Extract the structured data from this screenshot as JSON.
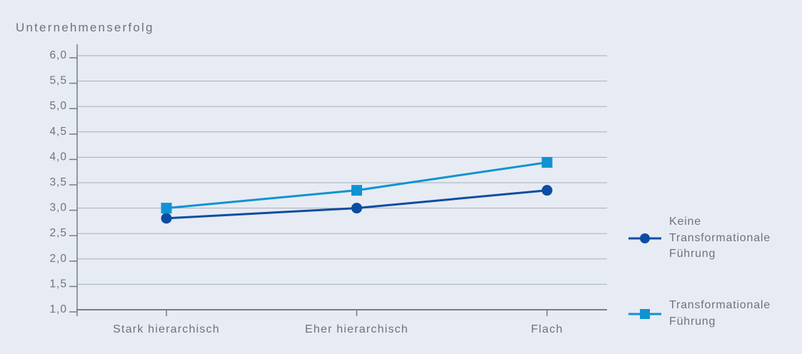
{
  "chart_data": {
    "type": "line",
    "title": "Unternehmenserfolg",
    "categories": [
      "Stark hierarchisch",
      "Eher hierarchisch",
      "Flach"
    ],
    "series": [
      {
        "name": "Keine Transformationale Führung",
        "marker": "circle",
        "color": "#0d4da1",
        "values": [
          2.8,
          3.0,
          3.35
        ]
      },
      {
        "name": "Transformationale Führung",
        "marker": "square",
        "color": "#0f93d2",
        "values": [
          3.0,
          3.35,
          3.9
        ]
      }
    ],
    "ylim": [
      1.0,
      6.0
    ],
    "yticks": [
      {
        "value": 6.0,
        "label": "6,0"
      },
      {
        "value": 5.5,
        "label": "5,5"
      },
      {
        "value": 5.0,
        "label": "5,0"
      },
      {
        "value": 4.5,
        "label": "4,5"
      },
      {
        "value": 4.0,
        "label": "4,0"
      },
      {
        "value": 3.5,
        "label": "3,5"
      },
      {
        "value": 3.0,
        "label": "3,0"
      },
      {
        "value": 2.5,
        "label": "2,5"
      },
      {
        "value": 2.0,
        "label": "2,0"
      },
      {
        "value": 1.5,
        "label": "1,5"
      },
      {
        "value": 1.0,
        "label": "1,0"
      }
    ],
    "grid": true,
    "legend_position": "right",
    "background_color": "#e7ebf4",
    "grid_color": "#a9aeb8",
    "axis_color": "#767d86",
    "text_color": "#6e737b"
  },
  "legend": {
    "items": [
      {
        "series": "Keine Transformationale Führung",
        "lines": [
          "Keine",
          "Transformationale",
          "Führung"
        ]
      },
      {
        "series": "Transformationale Führung",
        "lines": [
          "Transformationale",
          "Führung"
        ]
      }
    ]
  }
}
